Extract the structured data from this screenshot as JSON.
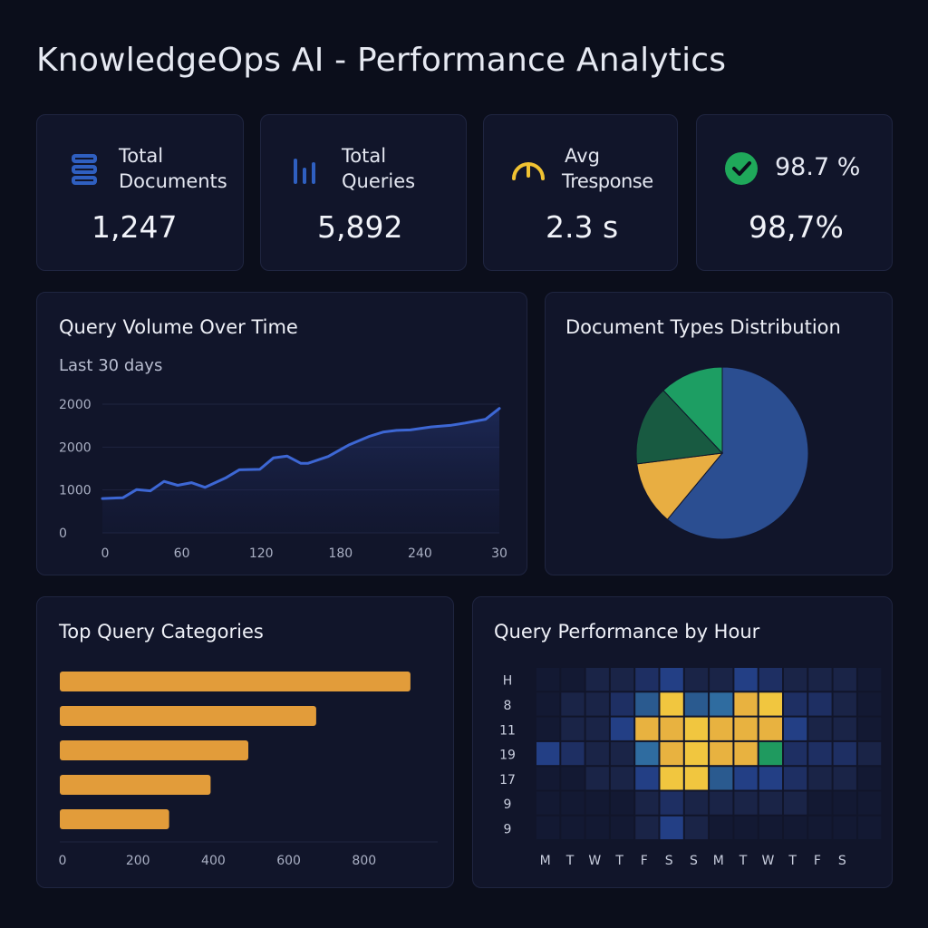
{
  "page": {
    "title": "KnowledgeOps AI - Performance Analytics"
  },
  "stats": [
    {
      "label_line1": "Total",
      "label_line2": "Documents",
      "value": "1,247",
      "icon": "document-stack-icon",
      "color": "#2f5fc0"
    },
    {
      "label_line1": "Total",
      "label_line2": "Queries",
      "value": "5,892",
      "icon": "bar-chart-icon",
      "color": "#2f5fc0"
    },
    {
      "label_line1": "Avg",
      "label_line2": "Tresponse",
      "value": "2.3 s",
      "icon": "gauge-icon",
      "color": "#f0c232"
    },
    {
      "label_line1": "98.7 %",
      "label_line2": "",
      "value": "98,7%",
      "icon": "check-circle-icon",
      "color": "#1fa85a"
    }
  ],
  "query_volume": {
    "title": "Query Volume Over Time",
    "subtitle": "Last 30 days"
  },
  "doc_types": {
    "title": "Document Types Distribution"
  },
  "top_categories": {
    "title": "Top Query Categories"
  },
  "query_performance": {
    "title": "Query Performance by Hour"
  },
  "chart_data": [
    {
      "type": "line",
      "title": "Query Volume Over Time",
      "subtitle": "Last 30 days",
      "xticks": [
        "0",
        "60",
        "120",
        "180",
        "240",
        "30"
      ],
      "yticks": [
        "0",
        "1000",
        "2000",
        "2000"
      ],
      "ylim": [
        0,
        3000
      ],
      "x": [
        0,
        15,
        25,
        35,
        45,
        55,
        65,
        75,
        90,
        100,
        115,
        125,
        135,
        145,
        150,
        165,
        180,
        195,
        205,
        215,
        225,
        240,
        255,
        265,
        280,
        290
      ],
      "y": [
        800,
        820,
        1010,
        980,
        1200,
        1110,
        1170,
        1060,
        1280,
        1470,
        1480,
        1750,
        1790,
        1620,
        1620,
        1780,
        2050,
        2250,
        2350,
        2390,
        2400,
        2470,
        2510,
        2560,
        2650,
        2900
      ],
      "series_color": "#3d67d4",
      "grid": true
    },
    {
      "type": "pie",
      "title": "Document Types Distribution",
      "values": [
        61,
        12,
        15,
        12
      ],
      "colors": [
        "#2b4e91",
        "#e8ae42",
        "#185a41",
        "#1d9e63"
      ]
    },
    {
      "type": "bar",
      "orientation": "horizontal",
      "title": "Top Query Categories",
      "values": [
        930,
        680,
        500,
        400,
        290
      ],
      "xticks": [
        0,
        200,
        400,
        600,
        800
      ],
      "xlim": [
        0,
        1000
      ],
      "color": "#e29c3a",
      "grid": false
    },
    {
      "type": "heatmap",
      "title": "Query Performance by Hour",
      "xticks": [
        "M",
        "T",
        "W",
        "T",
        "F",
        "S",
        "S",
        "M",
        "T",
        "W",
        "T",
        "F",
        "S"
      ],
      "yticks": [
        "H",
        "8",
        "11",
        "19",
        "17",
        "9",
        "9"
      ],
      "values": [
        [
          0,
          0,
          1,
          1,
          2,
          3,
          1,
          1,
          3,
          2,
          1,
          1,
          1,
          0
        ],
        [
          0,
          1,
          1,
          2,
          4,
          7,
          4,
          5,
          6,
          7,
          2,
          2,
          1,
          0
        ],
        [
          0,
          1,
          1,
          3,
          6,
          6,
          7,
          6,
          6,
          6,
          3,
          1,
          1,
          0
        ],
        [
          3,
          2,
          1,
          1,
          5,
          6,
          7,
          6,
          6,
          8,
          2,
          2,
          2,
          1
        ],
        [
          0,
          0,
          1,
          1,
          3,
          7,
          7,
          4,
          3,
          3,
          2,
          1,
          1,
          0
        ],
        [
          0,
          0,
          0,
          0,
          1,
          2,
          1,
          1,
          1,
          1,
          1,
          0,
          0,
          0
        ],
        [
          0,
          0,
          0,
          0,
          1,
          3,
          1,
          0,
          0,
          0,
          0,
          0,
          0,
          0
        ]
      ],
      "palette": [
        "#131933",
        "#1a2447",
        "#1e2f63",
        "#233f85",
        "#2a5a8f",
        "#2f6ca0",
        "#e8b240",
        "#f1c63f",
        "#1f9a5f"
      ]
    }
  ]
}
